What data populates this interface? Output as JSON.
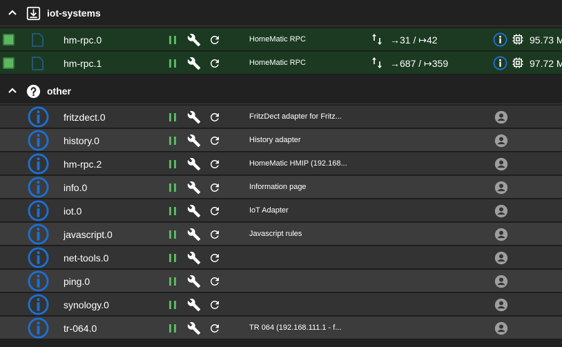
{
  "groups": [
    {
      "name": "iot-systems",
      "icon": "download-box-icon",
      "instances": [
        {
          "name": "hm-rpc.0",
          "description": "HomeMatic RPC",
          "in": "→31",
          "out": "↦42",
          "sep": "/",
          "memory": "95.73 M"
        },
        {
          "name": "hm-rpc.1",
          "description": "HomeMatic RPC",
          "in": "→687",
          "out": "↦359",
          "sep": "/",
          "memory": "97.72 M"
        }
      ]
    },
    {
      "name": "other",
      "icon": "help-circle-icon",
      "instances": [
        {
          "name": "fritzdect.0",
          "description": "FritzDect adapter for Fritz..."
        },
        {
          "name": "history.0",
          "description": "History adapter"
        },
        {
          "name": "hm-rpc.2",
          "description": "HomeMatic HMIP (192.168..."
        },
        {
          "name": "info.0",
          "description": "Information page"
        },
        {
          "name": "iot.0",
          "description": "IoT Adapter"
        },
        {
          "name": "javascript.0",
          "description": "Javascript rules"
        },
        {
          "name": "net-tools.0",
          "description": ""
        },
        {
          "name": "ping.0",
          "description": ""
        },
        {
          "name": "synology.0",
          "description": ""
        },
        {
          "name": "tr-064.0",
          "description": "TR 064 (192.168.111.1 - f..."
        }
      ]
    }
  ],
  "colors": {
    "running_green": "#5bb85f",
    "info_blue": "#1e6fd0",
    "row_green": "#1c3a22"
  }
}
